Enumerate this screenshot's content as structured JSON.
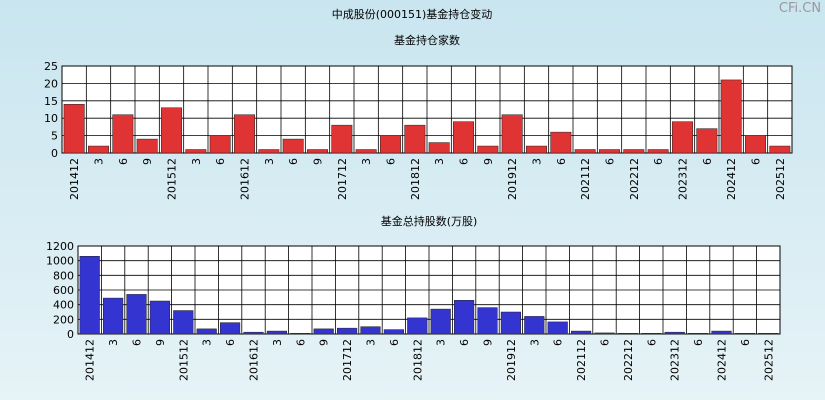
{
  "title": "中成股份(000151)基金持仓变动",
  "watermark": "CFi.CN",
  "chart_data": [
    {
      "type": "bar",
      "title": "基金持仓家数",
      "color": "#e03434",
      "grid": true,
      "categories": [
        "201412",
        "3",
        "6",
        "9",
        "201512",
        "3",
        "6",
        "201612",
        "3",
        "6",
        "9",
        "201712",
        "3",
        "6",
        "201812",
        "3",
        "6",
        "9",
        "201912",
        "3",
        "6",
        "202112",
        "6",
        "202212",
        "6",
        "202312",
        "6",
        "202412",
        "6",
        "202512"
      ],
      "values": [
        14,
        2,
        11,
        4,
        13,
        1,
        5,
        11,
        1,
        4,
        1,
        8,
        1,
        5,
        8,
        3,
        9,
        2,
        11,
        2,
        6,
        1,
        1,
        1,
        1,
        9,
        7,
        21,
        5,
        2
      ],
      "ylim": [
        0,
        25
      ],
      "yticks": [
        0,
        5,
        10,
        15,
        20,
        25
      ]
    },
    {
      "type": "bar",
      "title": "基金总持股数(万股)",
      "color": "#3434d0",
      "grid": true,
      "categories": [
        "201412",
        "3",
        "6",
        "9",
        "201512",
        "3",
        "6",
        "201612",
        "3",
        "6",
        "9",
        "201712",
        "3",
        "6",
        "201812",
        "3",
        "6",
        "9",
        "201912",
        "3",
        "6",
        "202112",
        "6",
        "202212",
        "6",
        "202312",
        "6",
        "202412",
        "6",
        "202512"
      ],
      "values": [
        1060,
        490,
        540,
        450,
        320,
        70,
        155,
        25,
        40,
        10,
        70,
        80,
        100,
        60,
        220,
        340,
        460,
        360,
        300,
        240,
        165,
        40,
        15,
        10,
        10,
        25,
        10,
        40,
        10,
        10
      ],
      "ylim": [
        0,
        1200
      ],
      "yticks": [
        0,
        200,
        400,
        600,
        800,
        1000,
        1200
      ]
    }
  ]
}
